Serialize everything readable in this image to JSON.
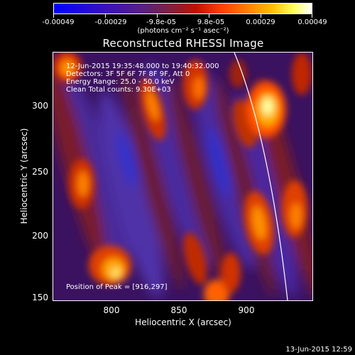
{
  "colorbar": {
    "labels": [
      "-0.00049",
      "-0.00029",
      "-9.8e-05",
      "9.8e-05",
      "0.00029",
      "0.00049"
    ],
    "units": "(photons cm⁻² s⁻¹ asec⁻²)",
    "colors": [
      "#0000ff",
      "#ff0000",
      "#ffff00",
      "#ffffff"
    ]
  },
  "title": "Reconstructed RHESSI Image",
  "info": {
    "line1": "12-Jun-2015 19:35:48.000 to 19:40:32.000",
    "line2": "Detectors: 3F 5F 6F 7F 8F 9F, Att 0",
    "line3": "Energy Range: 25.0 - 50.0 keV",
    "line4": "Clean    Total counts: 9.30E+03"
  },
  "peak": "Position of Peak = [916,297]",
  "x_axis": {
    "title": "Heliocentric X (arcsec)",
    "ticks": [
      "800",
      "850",
      "900"
    ]
  },
  "y_axis": {
    "title": "Heliocentric Y (arcsec)",
    "ticks": [
      "300",
      "250",
      "200",
      "150"
    ]
  },
  "timestamp": "13-Jun-2015 12:59"
}
